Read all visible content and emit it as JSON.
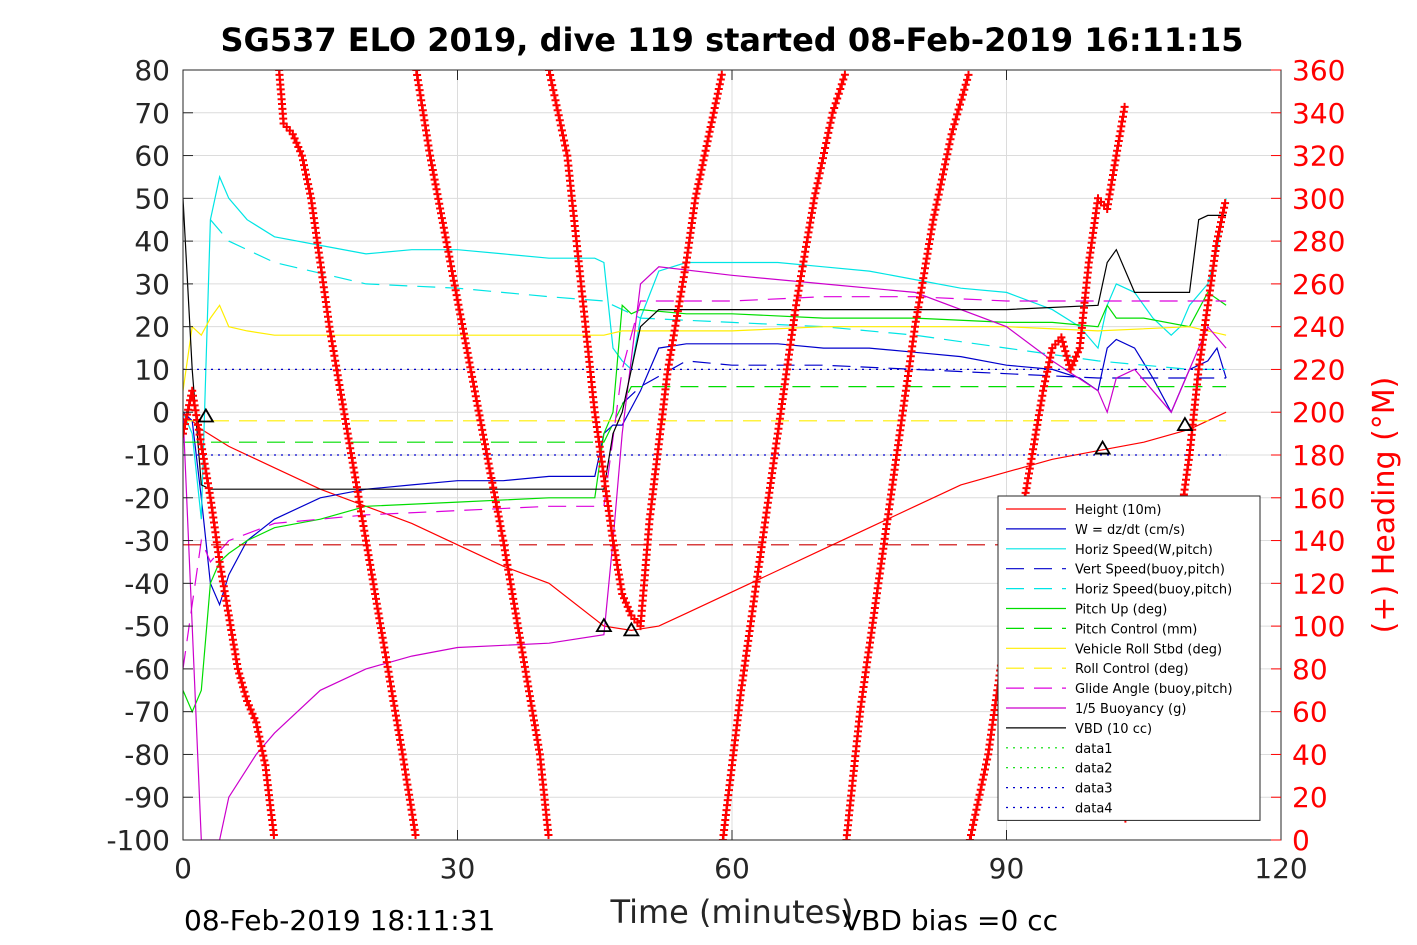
{
  "chart_data": {
    "type": "line",
    "title": "SG537 ELO 2019, dive 119 started 08-Feb-2019 16:11:15",
    "xlabel": "Time (minutes)",
    "ylabel_right": "(+) Heading (°M)",
    "footer_left": "08-Feb-2019 18:11:31",
    "footer_right": "VBD bias =0 cc",
    "xlim": [
      0,
      120
    ],
    "ylim_left": [
      -100,
      80
    ],
    "ylim_right": [
      0,
      360
    ],
    "x_ticks": [
      0,
      30,
      60,
      90,
      120
    ],
    "y_left_ticks": [
      80,
      70,
      60,
      50,
      40,
      30,
      20,
      10,
      0,
      -10,
      -20,
      -30,
      -40,
      -50,
      -60,
      -70,
      -80,
      -90,
      -100
    ],
    "y_right_ticks": [
      360,
      340,
      320,
      300,
      280,
      260,
      240,
      220,
      200,
      180,
      160,
      140,
      120,
      100,
      80,
      60,
      40,
      20,
      0
    ],
    "grid": true,
    "legend_position": "lower-right",
    "colors": {
      "heading": "#ff0000",
      "right_axis": "#ff0000"
    },
    "series": [
      {
        "name": "Height (10m)",
        "color": "#ff0000",
        "style": "solid",
        "x": [
          0,
          2,
          5,
          10,
          15,
          20,
          25,
          30,
          35,
          40,
          46,
          49,
          52,
          55,
          60,
          65,
          70,
          75,
          80,
          85,
          90,
          95,
          100,
          105,
          110,
          114
        ],
        "y": [
          0,
          -4,
          -8,
          -13,
          -18,
          -22,
          -26,
          -31,
          -36,
          -40,
          -50,
          -51,
          -50,
          -47,
          -42,
          -37,
          -32,
          -27,
          -22,
          -17,
          -14,
          -11,
          -9,
          -7,
          -4,
          0
        ]
      },
      {
        "name": "W = dz/dt (cm/s)",
        "color": "#0000cc",
        "style": "solid",
        "x": [
          0,
          1,
          2,
          3,
          4,
          5,
          7,
          10,
          15,
          20,
          25,
          30,
          35,
          40,
          45,
          46,
          47,
          48,
          50,
          52,
          55,
          60,
          65,
          70,
          75,
          80,
          85,
          90,
          95,
          98,
          100,
          101,
          102,
          104,
          106,
          108,
          109,
          110,
          112,
          113,
          114
        ],
        "y": [
          0,
          -2,
          -20,
          -40,
          -45,
          -38,
          -30,
          -25,
          -20,
          -18,
          -17,
          -16,
          -16,
          -15,
          -15,
          -5,
          -3,
          -3,
          5,
          15,
          16,
          16,
          16,
          15,
          15,
          14,
          13,
          11,
          10,
          8,
          5,
          15,
          17,
          15,
          8,
          0,
          5,
          10,
          12,
          15,
          8
        ]
      },
      {
        "name": "Horiz Speed(W,pitch)",
        "color": "#00e5e5",
        "style": "solid",
        "x": [
          0,
          1,
          2,
          3,
          4,
          5,
          7,
          10,
          15,
          20,
          25,
          30,
          35,
          40,
          45,
          46,
          47,
          48,
          49,
          50,
          52,
          55,
          60,
          65,
          70,
          75,
          80,
          85,
          90,
          95,
          98,
          100,
          101,
          102,
          104,
          106,
          108,
          109,
          110,
          112,
          113,
          114
        ],
        "y": [
          0,
          -5,
          -25,
          45,
          55,
          50,
          45,
          41,
          39,
          37,
          38,
          38,
          37,
          36,
          36,
          35,
          15,
          12,
          10,
          22,
          33,
          35,
          35,
          35,
          34,
          33,
          31,
          29,
          28,
          24,
          20,
          15,
          25,
          30,
          28,
          22,
          18,
          20,
          25,
          30,
          38,
          50
        ]
      },
      {
        "name": "Vert Speed(buoy,pitch)",
        "color": "#0000cc",
        "style": "dashed",
        "x": [
          48,
          50,
          55,
          60,
          70,
          80,
          90,
          100,
          110,
          114
        ],
        "y": [
          2,
          6,
          12,
          11,
          11,
          10,
          9,
          8,
          8,
          8
        ]
      },
      {
        "name": "Horiz Speed(buoy,pitch)",
        "color": "#00e5e5",
        "style": "dashed",
        "x": [
          3,
          5,
          10,
          20,
          30,
          40,
          46,
          50,
          60,
          70,
          80,
          90,
          100,
          110,
          114
        ],
        "y": [
          45,
          40,
          35,
          30,
          29,
          27,
          26,
          22,
          21,
          20,
          18,
          15,
          12,
          10,
          10
        ]
      },
      {
        "name": "Pitch Up (deg)",
        "color": "#00dd00",
        "style": "solid",
        "x": [
          0,
          1,
          2,
          3,
          4,
          5,
          7,
          10,
          15,
          20,
          30,
          40,
          45,
          46,
          47,
          48,
          49,
          50,
          55,
          60,
          70,
          80,
          90,
          95,
          100,
          101,
          102,
          105,
          110,
          112,
          114
        ],
        "y": [
          -65,
          -70,
          -65,
          -40,
          -35,
          -33,
          -30,
          -27,
          -25,
          -22,
          -21,
          -20,
          -20,
          -5,
          0,
          25,
          23,
          24,
          23,
          23,
          22,
          22,
          21,
          21,
          20,
          25,
          22,
          22,
          20,
          28,
          25
        ]
      },
      {
        "name": "Pitch Control (mm)",
        "color": "#00dd00",
        "style": "dashed",
        "x": [
          0,
          2,
          46,
          49,
          95,
          114
        ],
        "y": [
          -7,
          -7,
          -7,
          6,
          6,
          6
        ]
      },
      {
        "name": "Vehicle Roll Stbd (deg)",
        "color": "#ffee00",
        "style": "solid",
        "x": [
          0,
          1,
          2,
          3,
          4,
          5,
          7,
          10,
          20,
          30,
          40,
          46,
          48,
          50,
          60,
          70,
          80,
          90,
          100,
          110,
          114
        ],
        "y": [
          5,
          20,
          18,
          22,
          25,
          20,
          19,
          18,
          18,
          18,
          18,
          18,
          19,
          19,
          19,
          20,
          20,
          20,
          19,
          20,
          18
        ]
      },
      {
        "name": "Roll Control (deg)",
        "color": "#ffee00",
        "style": "dashed",
        "x": [
          0,
          114
        ],
        "y": [
          -2,
          -2
        ]
      },
      {
        "name": "Glide Angle (buoy,pitch)",
        "color": "#dd00dd",
        "style": "dashed",
        "x": [
          0,
          2,
          3,
          5,
          10,
          20,
          30,
          40,
          46,
          48,
          50,
          60,
          70,
          80,
          90,
          100,
          105,
          110,
          114
        ],
        "y": [
          -60,
          -30,
          -35,
          -30,
          -26,
          -24,
          -23,
          -22,
          -22,
          10,
          26,
          26,
          27,
          27,
          26,
          26,
          26,
          26,
          26
        ]
      },
      {
        "name": "1/5 Buoyancy (g)",
        "color": "#cc00cc",
        "style": "solid",
        "x": [
          0,
          1,
          2,
          3,
          4,
          5,
          8,
          10,
          15,
          20,
          25,
          30,
          40,
          46,
          47,
          48,
          50,
          52,
          60,
          70,
          80,
          90,
          95,
          100,
          101,
          102,
          104,
          106,
          108,
          110,
          112,
          114
        ],
        "y": [
          0,
          -50,
          -100,
          -100,
          -100,
          -90,
          -80,
          -75,
          -65,
          -60,
          -57,
          -55,
          -54,
          -52,
          -30,
          -5,
          30,
          34,
          32,
          30,
          28,
          20,
          12,
          5,
          0,
          8,
          10,
          5,
          0,
          10,
          20,
          15
        ]
      },
      {
        "name": "VBD (10 cc)",
        "color": "#000000",
        "style": "solid",
        "x": [
          0,
          1,
          2,
          3,
          10,
          20,
          30,
          40,
          46,
          47,
          48,
          50,
          52,
          55,
          60,
          70,
          80,
          90,
          100,
          101,
          102,
          104,
          106,
          108,
          110,
          111,
          112,
          114
        ],
        "y": [
          50,
          10,
          -17,
          -18,
          -18,
          -18,
          -18,
          -18,
          -18,
          -5,
          0,
          20,
          24,
          24,
          24,
          24,
          24,
          24,
          25,
          35,
          38,
          28,
          28,
          28,
          28,
          45,
          46,
          46
        ]
      },
      {
        "name": "data1",
        "color": "#00dd00",
        "style": "dotted",
        "x": [],
        "y": []
      },
      {
        "name": "data2",
        "color": "#00dd00",
        "style": "dotted",
        "x": [],
        "y": []
      },
      {
        "name": "data3",
        "color": "#0000cc",
        "style": "dotted",
        "x": [
          0,
          114
        ],
        "y": [
          10,
          10
        ]
      },
      {
        "name": "data4",
        "color": "#0000cc",
        "style": "dotted",
        "x": [
          0,
          114
        ],
        "y": [
          -10,
          -10
        ]
      }
    ],
    "extra_lines": [
      {
        "color": "#cc0000",
        "style": "dashed",
        "x": [
          0,
          114
        ],
        "y": [
          -31,
          -31
        ]
      }
    ],
    "heading_series": {
      "color": "#ff0000",
      "marker": "+",
      "axis": "right",
      "segments": [
        {
          "x": [
            0,
            1,
            2,
            3,
            4,
            5,
            6,
            7,
            8,
            9,
            10
          ],
          "y": [
            190,
            210,
            185,
            160,
            130,
            105,
            80,
            65,
            55,
            35,
            0
          ]
        },
        {
          "x": [
            10.5,
            11,
            12,
            13,
            14,
            15,
            16,
            18,
            20,
            22,
            24,
            25.5
          ],
          "y": [
            360,
            335,
            330,
            320,
            300,
            270,
            240,
            190,
            140,
            90,
            40,
            0
          ]
        },
        {
          "x": [
            25.5,
            27,
            29,
            31,
            33,
            35,
            37,
            39,
            40
          ],
          "y": [
            360,
            320,
            275,
            230,
            185,
            140,
            90,
            40,
            0
          ]
        },
        {
          "x": [
            40,
            42,
            43,
            44,
            45,
            46,
            47,
            48,
            49,
            50
          ],
          "y": [
            360,
            320,
            280,
            240,
            200,
            170,
            140,
            115,
            105,
            100
          ]
        },
        {
          "x": [
            50,
            51,
            53,
            55,
            56,
            57,
            58,
            59
          ],
          "y": [
            100,
            150,
            220,
            270,
            300,
            320,
            340,
            360
          ]
        },
        {
          "x": [
            59,
            61,
            63,
            65,
            67,
            69,
            71,
            72.5
          ],
          "y": [
            0,
            70,
            130,
            190,
            250,
            300,
            340,
            360
          ]
        },
        {
          "x": [
            72.5,
            74,
            76,
            78,
            80,
            82,
            84,
            86
          ],
          "y": [
            0,
            60,
            120,
            180,
            240,
            290,
            330,
            360
          ]
        },
        {
          "x": [
            86,
            88,
            90,
            92,
            94,
            95,
            96,
            97,
            98,
            99,
            100,
            101,
            102,
            103
          ],
          "y": [
            0,
            40,
            100,
            160,
            210,
            230,
            235,
            220,
            230,
            270,
            300,
            295,
            320,
            345
          ]
        },
        {
          "x": [
            103,
            104,
            105,
            106,
            107,
            108,
            109,
            110,
            111,
            112,
            113,
            114
          ],
          "y": [
            10,
            20,
            40,
            80,
            110,
            130,
            150,
            180,
            220,
            250,
            280,
            300
          ]
        }
      ]
    },
    "event_markers": {
      "color": "#000000",
      "marker": "triangle",
      "points": [
        [
          2.5,
          -1
        ],
        [
          46,
          -50
        ],
        [
          49,
          -51
        ],
        [
          100.5,
          -8.5
        ],
        [
          109.5,
          -3
        ]
      ]
    }
  }
}
